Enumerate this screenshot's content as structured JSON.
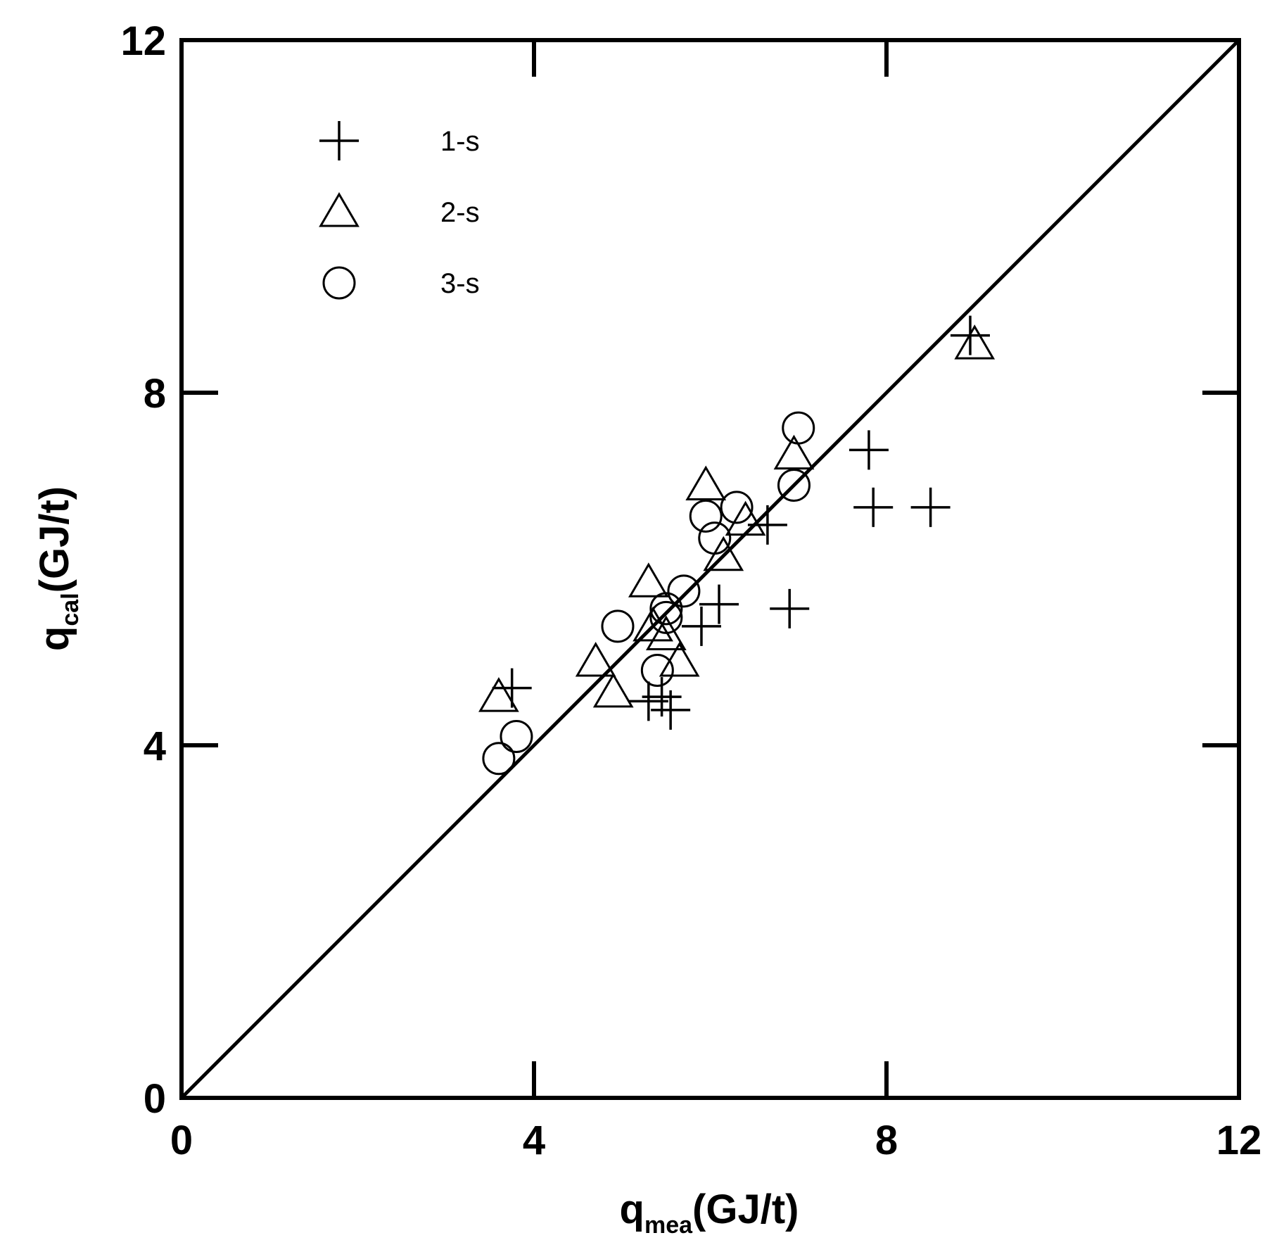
{
  "chart_data": {
    "type": "scatter",
    "xlabel": {
      "main": "q",
      "sub": "mea",
      "unit": "(GJ/t)"
    },
    "ylabel": {
      "main": "q",
      "sub": "cal",
      "unit": "(GJ/t)"
    },
    "xlim": [
      0,
      12
    ],
    "ylim": [
      0,
      12
    ],
    "x_ticks": [
      "0",
      "4",
      "8",
      "12"
    ],
    "y_ticks": [
      "0",
      "4",
      "8",
      "12"
    ],
    "grid": false,
    "legend_position": "top-left",
    "reference_line": {
      "type": "y=x",
      "from": [
        0,
        0
      ],
      "to": [
        12,
        12
      ]
    },
    "series": [
      {
        "name": "1-s",
        "marker": "plus",
        "points": [
          [
            3.75,
            4.65
          ],
          [
            5.3,
            4.5
          ],
          [
            5.45,
            4.55
          ],
          [
            5.55,
            4.4
          ],
          [
            5.9,
            5.35
          ],
          [
            6.1,
            5.6
          ],
          [
            6.65,
            6.5
          ],
          [
            6.9,
            5.55
          ],
          [
            7.8,
            7.35
          ],
          [
            7.85,
            6.7
          ],
          [
            8.5,
            6.7
          ],
          [
            8.95,
            8.65
          ]
        ]
      },
      {
        "name": "2-s",
        "marker": "triangle",
        "points": [
          [
            3.6,
            4.55
          ],
          [
            4.7,
            4.95
          ],
          [
            4.9,
            4.6
          ],
          [
            5.3,
            5.85
          ],
          [
            5.35,
            5.35
          ],
          [
            5.5,
            5.25
          ],
          [
            5.65,
            4.95
          ],
          [
            5.95,
            6.95
          ],
          [
            6.15,
            6.15
          ],
          [
            6.4,
            6.55
          ],
          [
            6.95,
            7.3
          ],
          [
            9.0,
            8.55
          ]
        ]
      },
      {
        "name": "3-s",
        "marker": "circle",
        "points": [
          [
            3.6,
            3.85
          ],
          [
            3.8,
            4.1
          ],
          [
            4.95,
            5.35
          ],
          [
            5.4,
            4.85
          ],
          [
            5.5,
            5.45
          ],
          [
            5.5,
            5.55
          ],
          [
            5.7,
            5.75
          ],
          [
            5.95,
            6.6
          ],
          [
            6.05,
            6.35
          ],
          [
            6.3,
            6.7
          ],
          [
            6.95,
            6.95
          ],
          [
            7.0,
            7.6
          ]
        ]
      }
    ]
  }
}
